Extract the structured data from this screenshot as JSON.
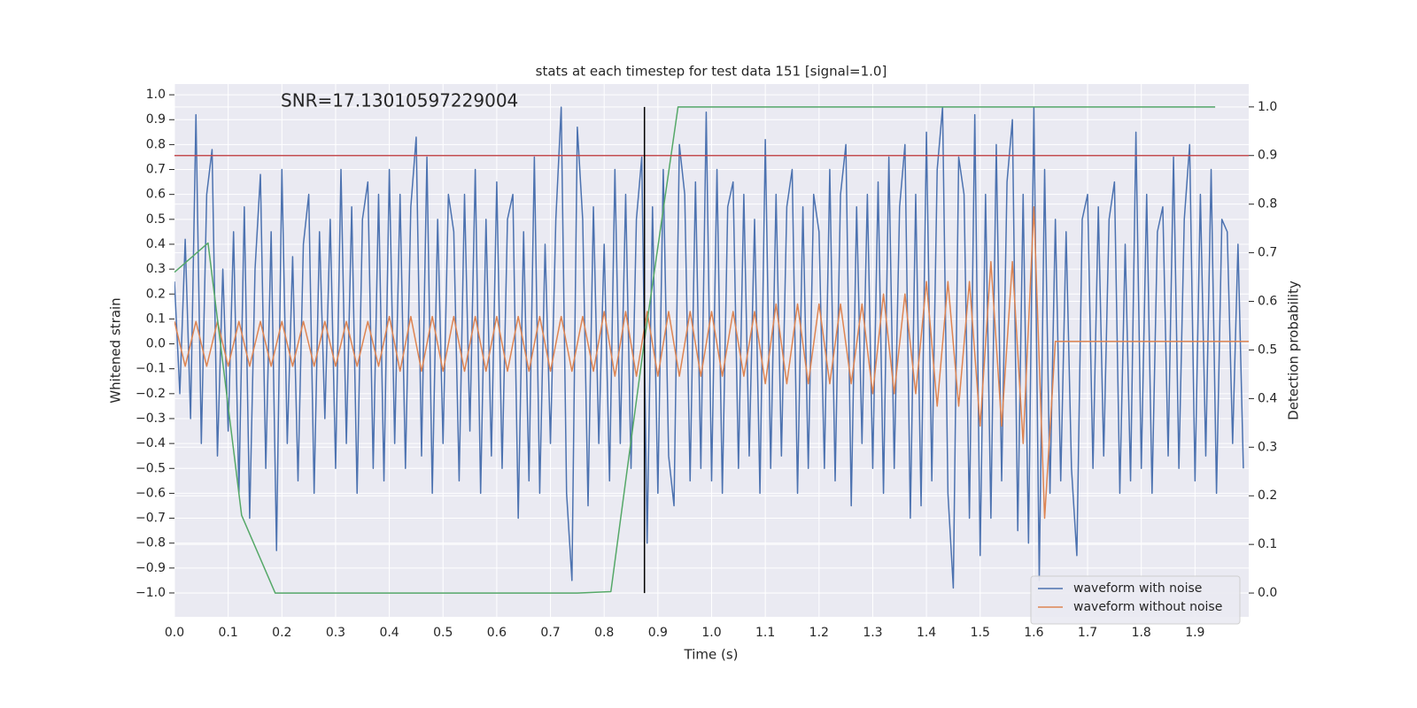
{
  "chart_data": {
    "type": "line",
    "title": "stats at each timestep for test data 151 [signal=1.0]",
    "annotation": "SNR=17.13010597229004",
    "xlabel": "Time (s)",
    "ylabel": "Whitened strain",
    "y2label": "Detection probability",
    "xlim": [
      0,
      2.0
    ],
    "ylim": [
      -1.096,
      1.043
    ],
    "y2lim": [
      -0.049,
      1.047
    ],
    "xticks": [
      {
        "value": 0,
        "label": "0.0"
      },
      0.1,
      0.2,
      0.3,
      0.4,
      0.5,
      0.6,
      0.7,
      0.8,
      0.9,
      {
        "value": 1,
        "label": "1.0"
      },
      1.1,
      1.2,
      1.3,
      1.4,
      1.5,
      1.6,
      1.7,
      1.8,
      1.9
    ],
    "yticks": [
      {
        "value": 1,
        "label": "1.0"
      },
      0.9,
      0.8,
      0.7,
      0.6,
      0.5,
      0.4,
      0.3,
      0.2,
      0.1,
      {
        "value": 0,
        "label": "0.0"
      },
      {
        "value": -0.1,
        "label": "−0.1"
      },
      {
        "value": -0.2,
        "label": "−0.2"
      },
      {
        "value": -0.3,
        "label": "−0.3"
      },
      {
        "value": -0.4,
        "label": "−0.4"
      },
      {
        "value": -0.5,
        "label": "−0.5"
      },
      {
        "value": -0.6,
        "label": "−0.6"
      },
      {
        "value": -0.7,
        "label": "−0.7"
      },
      {
        "value": -0.8,
        "label": "−0.8"
      },
      {
        "value": -0.9,
        "label": "−0.9"
      },
      {
        "value": -1,
        "label": "−1.0"
      }
    ],
    "y2ticks": [
      {
        "value": 1,
        "label": "1.0"
      },
      0.9,
      0.8,
      0.7,
      0.6,
      0.5,
      0.4,
      0.3,
      0.2,
      0.1,
      {
        "value": 0,
        "label": "0.0"
      }
    ],
    "grid": true,
    "legend": "lower right",
    "series": [
      {
        "name": "waveform with noise",
        "color": "#4c72b0",
        "x": [
          0,
          0.01,
          0.02,
          0.03,
          0.04,
          0.05,
          0.06,
          0.07,
          0.08,
          0.09,
          0.1,
          0.11,
          0.12,
          0.13,
          0.14,
          0.15,
          0.16,
          0.17,
          0.18,
          0.19,
          0.2,
          0.21,
          0.22,
          0.23,
          0.24,
          0.25,
          0.26,
          0.27,
          0.28,
          0.29,
          0.3,
          0.31,
          0.32,
          0.33,
          0.34,
          0.35,
          0.36,
          0.37,
          0.38,
          0.39,
          0.4,
          0.41,
          0.42,
          0.43,
          0.44,
          0.45,
          0.46,
          0.47,
          0.48,
          0.49,
          0.5,
          0.51,
          0.52,
          0.53,
          0.54,
          0.55,
          0.56,
          0.57,
          0.58,
          0.59,
          0.6,
          0.61,
          0.62,
          0.63,
          0.64,
          0.65,
          0.66,
          0.67,
          0.68,
          0.69,
          0.7,
          0.71,
          0.72,
          0.73,
          0.74,
          0.75,
          0.76,
          0.77,
          0.78,
          0.79,
          0.8,
          0.81,
          0.82,
          0.83,
          0.84,
          0.85,
          0.86,
          0.87,
          0.88,
          0.89,
          0.9,
          0.91,
          0.92,
          0.93,
          0.94,
          0.95,
          0.96,
          0.97,
          0.98,
          0.99,
          1,
          1.01,
          1.02,
          1.03,
          1.04,
          1.05,
          1.06,
          1.07,
          1.08,
          1.09,
          1.1,
          1.11,
          1.12,
          1.13,
          1.14,
          1.15,
          1.16,
          1.17,
          1.18,
          1.19,
          1.2,
          1.21,
          1.22,
          1.23,
          1.24,
          1.25,
          1.26,
          1.27,
          1.28,
          1.29,
          1.3,
          1.31,
          1.32,
          1.33,
          1.34,
          1.35,
          1.36,
          1.37,
          1.38,
          1.39,
          1.4,
          1.41,
          1.42,
          1.43,
          1.44,
          1.45,
          1.46,
          1.47,
          1.48,
          1.49,
          1.5,
          1.51,
          1.52,
          1.53,
          1.54,
          1.55,
          1.56,
          1.57,
          1.58,
          1.59,
          1.6,
          1.61,
          1.62,
          1.63,
          1.64,
          1.65,
          1.66,
          1.67,
          1.68,
          1.69,
          1.7,
          1.71,
          1.72,
          1.73,
          1.74,
          1.75,
          1.76,
          1.77,
          1.78,
          1.79,
          1.8,
          1.81,
          1.82,
          1.83,
          1.84,
          1.85,
          1.86,
          1.87,
          1.88,
          1.89,
          1.9,
          1.91,
          1.92,
          1.93,
          1.94,
          1.95,
          1.96,
          1.97,
          1.98,
          1.99
        ],
        "values": [
          0.25,
          -0.2,
          0.42,
          -0.3,
          0.92,
          -0.4,
          0.6,
          0.78,
          -0.45,
          0.3,
          -0.35,
          0.45,
          -0.6,
          0.55,
          -0.7,
          0.3,
          0.68,
          -0.5,
          0.45,
          -0.83,
          0.7,
          -0.4,
          0.35,
          -0.55,
          0.4,
          0.6,
          -0.6,
          0.45,
          -0.3,
          0.5,
          -0.5,
          0.7,
          -0.4,
          0.55,
          -0.6,
          0.5,
          0.65,
          -0.5,
          0.6,
          -0.55,
          0.7,
          -0.4,
          0.6,
          -0.5,
          0.55,
          0.83,
          -0.45,
          0.75,
          -0.6,
          0.5,
          -0.4,
          0.6,
          0.45,
          -0.55,
          0.6,
          -0.35,
          0.7,
          -0.6,
          0.5,
          -0.45,
          0.65,
          -0.5,
          0.5,
          0.6,
          -0.7,
          0.45,
          -0.55,
          0.75,
          -0.6,
          0.4,
          -0.4,
          0.5,
          0.95,
          -0.6,
          -0.95,
          0.87,
          0.5,
          -0.65,
          0.55,
          -0.4,
          0.4,
          -0.55,
          0.7,
          -0.4,
          0.6,
          -0.5,
          0.5,
          0.75,
          -0.8,
          0.55,
          -0.6,
          0.7,
          -0.45,
          -0.65,
          0.8,
          0.6,
          -0.55,
          0.65,
          -0.5,
          0.93,
          -0.55,
          0.7,
          -0.6,
          0.55,
          0.65,
          -0.5,
          0.6,
          -0.45,
          0.5,
          -0.6,
          0.82,
          -0.5,
          0.6,
          -0.45,
          0.55,
          0.7,
          -0.6,
          0.55,
          -0.5,
          0.6,
          0.45,
          -0.5,
          0.7,
          -0.55,
          0.6,
          0.8,
          -0.65,
          0.55,
          -0.4,
          0.6,
          -0.5,
          0.65,
          -0.6,
          0.75,
          -0.5,
          0.55,
          0.8,
          -0.7,
          0.6,
          -0.65,
          0.85,
          -0.55,
          0.7,
          0.95,
          -0.6,
          -0.98,
          0.75,
          0.6,
          -0.7,
          0.92,
          -0.85,
          0.6,
          -0.7,
          0.8,
          -0.55,
          0.65,
          0.9,
          -0.75,
          0.6,
          -0.8,
          0.95,
          -0.95,
          0.7,
          -0.6,
          0.5,
          -0.55,
          0.45,
          -0.5,
          -0.85,
          0.5,
          0.6,
          -0.5,
          0.55,
          -0.45,
          0.5,
          0.65,
          -0.6,
          0.4,
          -0.55,
          0.85,
          -0.5,
          0.6,
          -0.6,
          0.45,
          0.55,
          -0.45,
          0.75,
          -0.5,
          0.5,
          0.8,
          -0.55,
          0.6,
          -0.45,
          0.7,
          -0.6,
          0.5,
          0.45,
          -0.4,
          0.4,
          -0.5
        ]
      },
      {
        "name": "waveform without noise",
        "color": "#dd8452",
        "x": [
          0,
          0.02,
          0.04,
          0.06,
          0.08,
          0.1,
          0.12,
          0.14,
          0.16,
          0.18,
          0.2,
          0.22,
          0.24,
          0.26,
          0.28,
          0.3,
          0.32,
          0.34,
          0.36,
          0.38,
          0.4,
          0.42,
          0.44,
          0.46,
          0.48,
          0.5,
          0.52,
          0.54,
          0.56,
          0.58,
          0.6,
          0.62,
          0.64,
          0.66,
          0.68,
          0.7,
          0.72,
          0.74,
          0.76,
          0.78,
          0.8,
          0.82,
          0.84,
          0.86,
          0.88,
          0.9,
          0.92,
          0.94,
          0.96,
          0.98,
          1,
          1.02,
          1.04,
          1.06,
          1.08,
          1.1,
          1.12,
          1.14,
          1.16,
          1.18,
          1.2,
          1.22,
          1.24,
          1.26,
          1.28,
          1.3,
          1.32,
          1.34,
          1.36,
          1.38,
          1.4,
          1.42,
          1.44,
          1.46,
          1.48,
          1.5,
          1.52,
          1.54,
          1.56,
          1.58,
          1.6,
          1.62,
          1.64,
          2.0
        ],
        "values": [
          0.09,
          -0.09,
          0.09,
          -0.09,
          0.09,
          -0.09,
          0.09,
          -0.09,
          0.09,
          -0.09,
          0.09,
          -0.09,
          0.09,
          -0.09,
          0.09,
          -0.09,
          0.09,
          -0.09,
          0.09,
          -0.09,
          0.11,
          -0.11,
          0.11,
          -0.11,
          0.11,
          -0.11,
          0.11,
          -0.11,
          0.11,
          -0.11,
          0.11,
          -0.11,
          0.11,
          -0.11,
          0.11,
          -0.11,
          0.11,
          -0.11,
          0.11,
          -0.11,
          0.13,
          -0.13,
          0.13,
          -0.13,
          0.13,
          -0.13,
          0.13,
          -0.13,
          0.13,
          -0.13,
          0.13,
          -0.13,
          0.13,
          -0.13,
          0.13,
          -0.16,
          0.16,
          -0.16,
          0.16,
          -0.16,
          0.16,
          -0.16,
          0.16,
          -0.16,
          0.16,
          -0.2,
          0.2,
          -0.2,
          0.2,
          -0.2,
          0.25,
          -0.25,
          0.25,
          -0.25,
          0.25,
          -0.33,
          0.33,
          -0.33,
          0.33,
          -0.4,
          0.55,
          -0.7,
          0.01,
          0.01
        ]
      },
      {
        "color": "#55a868",
        "axis": "y2",
        "x": [
          0,
          0.0625,
          0.125,
          0.1875,
          0.25,
          0.3125,
          0.375,
          0.4375,
          0.5,
          0.5625,
          0.625,
          0.6875,
          0.75,
          0.8125,
          0.875,
          0.9375,
          1,
          1.0625,
          1.125,
          1.1875,
          1.25,
          1.3125,
          1.375,
          1.4375,
          1.5,
          1.5625,
          1.625,
          1.6875,
          1.75,
          1.8125,
          1.875,
          1.9375
        ],
        "values": [
          0.66,
          0.72,
          0.16,
          0,
          0,
          0,
          0,
          0,
          0,
          0,
          0,
          0,
          0,
          0.003,
          0.52,
          1,
          1,
          1,
          1,
          1,
          1,
          1,
          1,
          1,
          1,
          1,
          1,
          1,
          1,
          1,
          1,
          1
        ]
      }
    ],
    "hlines": [
      {
        "value": 0.9,
        "axis": "y2",
        "color": "#c44e52"
      }
    ],
    "vlines": [
      {
        "value": 0.875,
        "y2min": 0,
        "y2max": 1,
        "color": "#000000"
      }
    ]
  }
}
